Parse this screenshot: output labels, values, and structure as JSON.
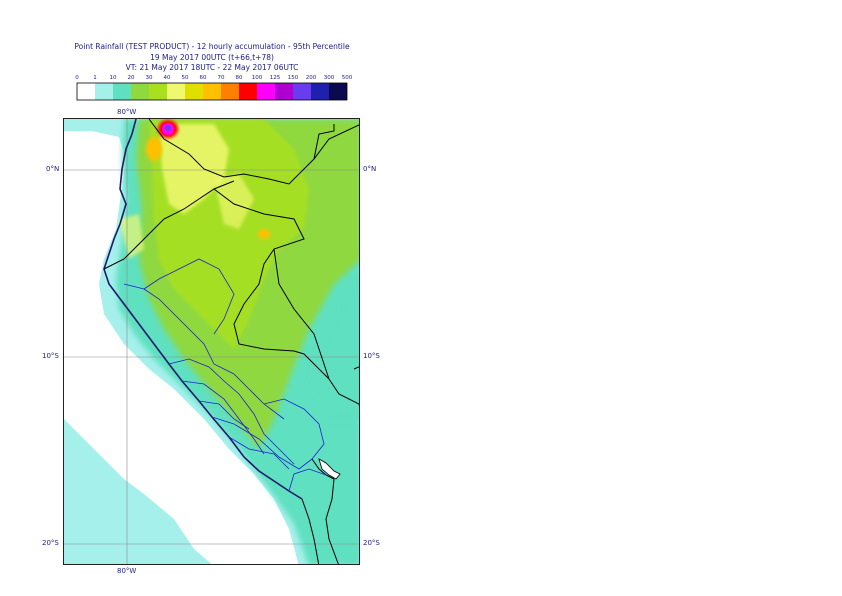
{
  "title": {
    "line1": "Point Rainfall (TEST PRODUCT) - 12 hourly accumulation - 95th Percentile",
    "line2": "19 May 2017 00UTC (t+66,t+78)",
    "line3": "VT: 21 May 2017 18UTC - 22 May 2017 06UTC"
  },
  "legend": {
    "thresholds": [
      "0",
      "1",
      "10",
      "20",
      "30",
      "40",
      "50",
      "60",
      "70",
      "80",
      "100",
      "125",
      "150",
      "200",
      "300",
      "500"
    ],
    "colors": [
      "#ffffff",
      "#a6f0ec",
      "#5fe0c0",
      "#8fd840",
      "#a8e020",
      "#f0f870",
      "#e0e000",
      "#ffc000",
      "#ff8000",
      "#ff0000",
      "#ff00ff",
      "#b000d0",
      "#6a3cf0",
      "#2020b0",
      "#0a0a50"
    ]
  },
  "map": {
    "lon_labels": {
      "top": "80°W",
      "bottom": "80°W"
    },
    "lat_labels": [
      {
        "left": "0°N",
        "right": "0°N"
      },
      {
        "left": "10°S",
        "right": "10°S"
      },
      {
        "left": "20°S",
        "right": "20°S"
      }
    ]
  }
}
